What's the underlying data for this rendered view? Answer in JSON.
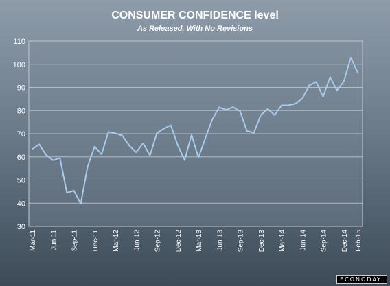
{
  "chart_data": {
    "type": "line",
    "title": "CONSUMER CONFIDENCE level",
    "subtitle": "As Released, With No Revisions",
    "ylim": [
      30,
      110
    ],
    "yticks": [
      30,
      40,
      50,
      60,
      70,
      80,
      90,
      100,
      110
    ],
    "xtick_labels": [
      "Mar-11",
      "Jun-11",
      "Sep-11",
      "Dec-11",
      "Mar-12",
      "Jun-12",
      "Sep-12",
      "Dec-12",
      "Mar-13",
      "Jun-13",
      "Sep-13",
      "Dec-13",
      "Mar-14",
      "Jun-14",
      "Sep-14",
      "Dec-14",
      "Feb-15"
    ],
    "grid": true,
    "line_color": "#a8ccee",
    "series": [
      {
        "x": [
          "Mar-11",
          "Apr-11",
          "May-11",
          "Jun-11",
          "Jul-11",
          "Aug-11",
          "Sep-11",
          "Oct-11",
          "Nov-11",
          "Dec-11",
          "Jan-12",
          "Feb-12",
          "Mar-12",
          "Apr-12",
          "May-12",
          "Jun-12",
          "Jul-12",
          "Aug-12",
          "Sep-12",
          "Oct-12",
          "Nov-12",
          "Dec-12",
          "Jan-13",
          "Feb-13",
          "Mar-13",
          "Apr-13",
          "May-13",
          "Jun-13",
          "Jul-13",
          "Aug-13",
          "Sep-13",
          "Oct-13",
          "Nov-13",
          "Dec-13",
          "Jan-14",
          "Feb-14",
          "Mar-14",
          "Apr-14",
          "May-14",
          "Jun-14",
          "Jul-14",
          "Aug-14",
          "Sep-14",
          "Oct-14",
          "Nov-14",
          "Dec-14",
          "Jan-15",
          "Feb-15"
        ],
        "values": [
          63.4,
          65.4,
          60.8,
          58.5,
          59.5,
          44.5,
          45.4,
          39.8,
          56.0,
          64.5,
          61.1,
          70.8,
          70.2,
          69.2,
          64.9,
          62.0,
          65.9,
          60.6,
          70.3,
          72.2,
          73.7,
          65.1,
          58.6,
          69.6,
          59.7,
          68.1,
          76.2,
          81.4,
          80.3,
          81.5,
          79.7,
          71.2,
          70.4,
          78.1,
          80.7,
          78.1,
          82.3,
          82.3,
          83.0,
          85.2,
          90.9,
          92.4,
          86.0,
          94.5,
          88.7,
          92.6,
          102.9,
          96.4
        ]
      }
    ]
  },
  "branding": {
    "watermark": "ECONODAY."
  }
}
